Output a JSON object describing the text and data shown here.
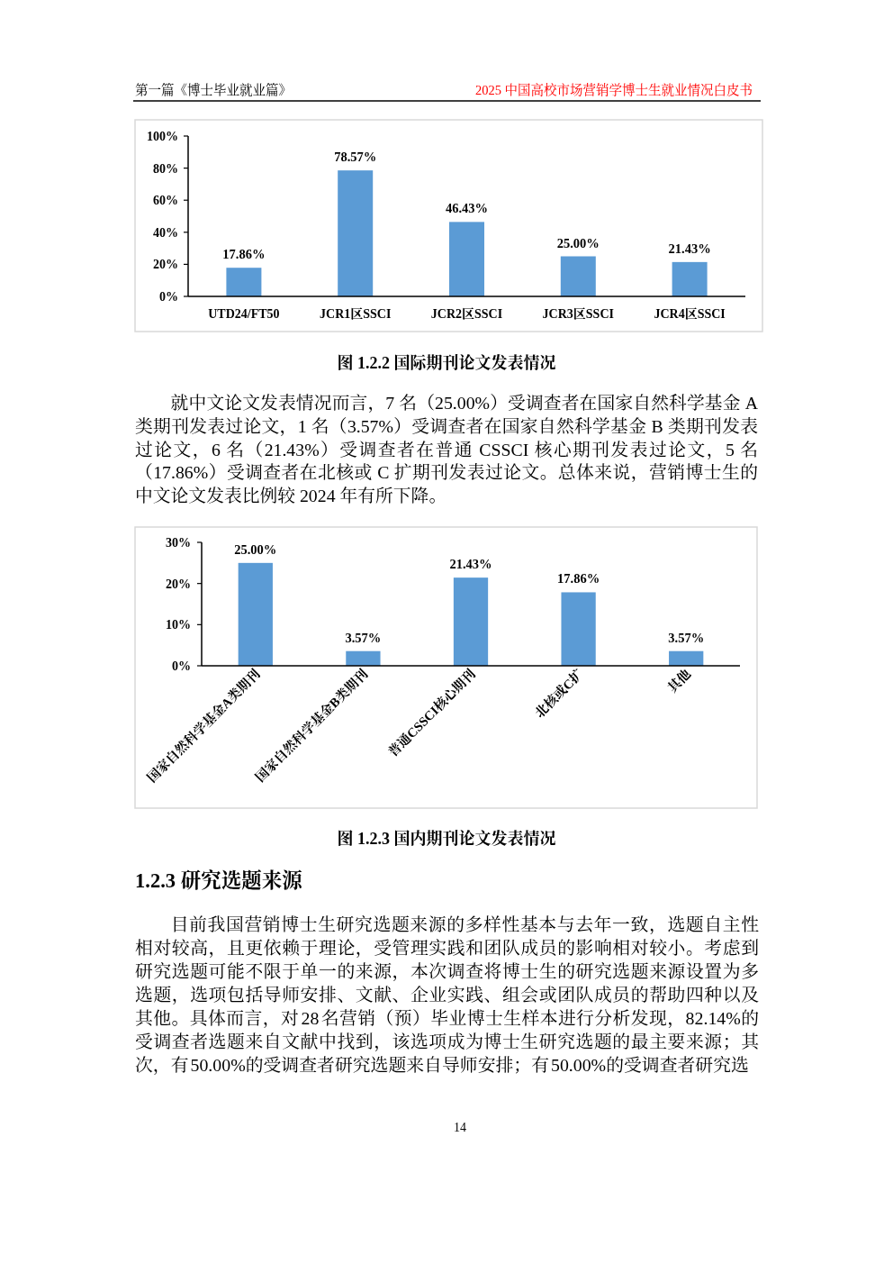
{
  "chart_data": [
    {
      "type": "bar",
      "title": "图 1.2.2 国际期刊论文发表情况",
      "categories": [
        "UTD24/FT50",
        "JCR1区SSCI",
        "JCR2区SSCI",
        "JCR3区SSCI",
        "JCR4区SSCI"
      ],
      "values": [
        17.86,
        78.57,
        46.43,
        25.0,
        21.43
      ],
      "value_labels": [
        "17.86%",
        "78.57%",
        "46.43%",
        "25.00%",
        "21.43%"
      ],
      "color": "#5b9bd5",
      "ylim": [
        0,
        100
      ],
      "yticks": [
        {
          "value": 0,
          "label": "0%"
        },
        {
          "value": 20,
          "label": "20%"
        },
        {
          "value": 40,
          "label": "40%"
        },
        {
          "value": 60,
          "label": "60%"
        },
        {
          "value": 80,
          "label": "80%"
        },
        {
          "value": 100,
          "label": "100%"
        }
      ],
      "annotations": [
        "第一篇《博士毕业就业篇》",
        "2025 中国高校市场营销学博士生就业情况白皮书",
        "就中文论文发表情况而言，7 名（25.00%）受调查者在国家自然科学基金 A 类期刊发表过论文，1 名（3.57%）受调查者在国家自然科学基金 B 类期刊发表过论文，6 名（21.43%）受调查者在普通 CSSCI 核心期刊发表过论文，5 名（17.86%）受调查者在北核或 C 扩期刊发表过论文。总体来说，营销博士生的中文论文发表比例较 2024 年有所下降。"
      ]
    },
    {
      "type": "bar",
      "title": "图 1.2.3 国内期刊论文发表情况",
      "categories": [
        "国家自然科学基金A类期刊",
        "国家自然科学基金B类期刊",
        "普通CSSCI核心期刊",
        "北核或C扩",
        "其他"
      ],
      "values": [
        25.0,
        3.57,
        21.43,
        17.86,
        3.57
      ],
      "value_labels": [
        "25.00%",
        "3.57%",
        "21.43%",
        "17.86%",
        "3.57%"
      ],
      "color": "#5b9bd5",
      "ylim": [
        0,
        30
      ],
      "yticks": [
        {
          "value": 0,
          "label": "0%"
        },
        {
          "value": 10,
          "label": "10%"
        },
        {
          "value": 20,
          "label": "20%"
        },
        {
          "value": 30,
          "label": "30%"
        }
      ],
      "annotations": [
        "1.2.3 研究选题来源",
        "目前我国营销博士生研究选题来源的多样性基本与去年一致，选题自主性相对较高，且更依赖于理论，受管理实践和团队成员的影响相对较小。考虑到研究选题可能不限于单一的来源，本次调查将博士生的研究选题来源设置为多选题，选项包括导师安排、文献、企业实践、组会或团队成员的帮助四种以及其他。具体而言，对 28 名营销（预）毕业博士生样本进行分析发现，82.14%的受调查者选题来自文献中找到，该选项成为博士生研究选题的最主要来源；其次，有 50.00%的受调查者研究选题来自导师安排；有 50.00%的受调查者研究选",
        "14"
      ]
    }
  ]
}
